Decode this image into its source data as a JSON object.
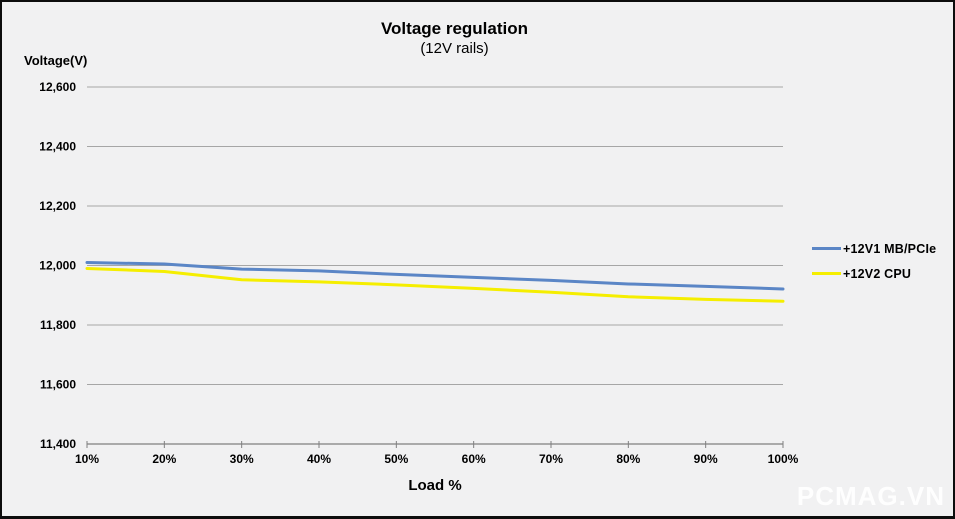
{
  "title": "Voltage regulation",
  "subtitle": "(12V rails)",
  "y_axis_title": "Voltage(V)",
  "x_axis_title": "Load %",
  "watermark": "PCMAG.VN",
  "colors": {
    "background": "#f1f1f2",
    "border": "#0d0d0d",
    "gridline": "#a6a6a6",
    "axis": "#808080",
    "text": "#000000",
    "series1": "#5b86c6",
    "series2": "#f5ee00"
  },
  "chart_data": {
    "type": "line",
    "title": "Voltage regulation",
    "subtitle": "(12V rails)",
    "xlabel": "Load %",
    "ylabel": "Voltage(V)",
    "categories": [
      "10%",
      "20%",
      "30%",
      "40%",
      "50%",
      "60%",
      "70%",
      "80%",
      "90%",
      "100%"
    ],
    "series": [
      {
        "name": "+12V1 MB/PCIe",
        "color": "#5b86c6",
        "values": [
          12010,
          12005,
          11988,
          11982,
          11970,
          11960,
          11950,
          11938,
          11930,
          11921
        ]
      },
      {
        "name": "+12V2 CPU",
        "color": "#f5ee00",
        "values": [
          11990,
          11980,
          11952,
          11945,
          11935,
          11923,
          11910,
          11895,
          11886,
          11880
        ]
      }
    ],
    "ylim": [
      11400,
      12600
    ],
    "ytick_step": 200,
    "ytick_labels": [
      "11,400",
      "11,600",
      "11,800",
      "12,000",
      "12,200",
      "12,400",
      "12,600"
    ],
    "grid": true,
    "legend_position": "right"
  }
}
